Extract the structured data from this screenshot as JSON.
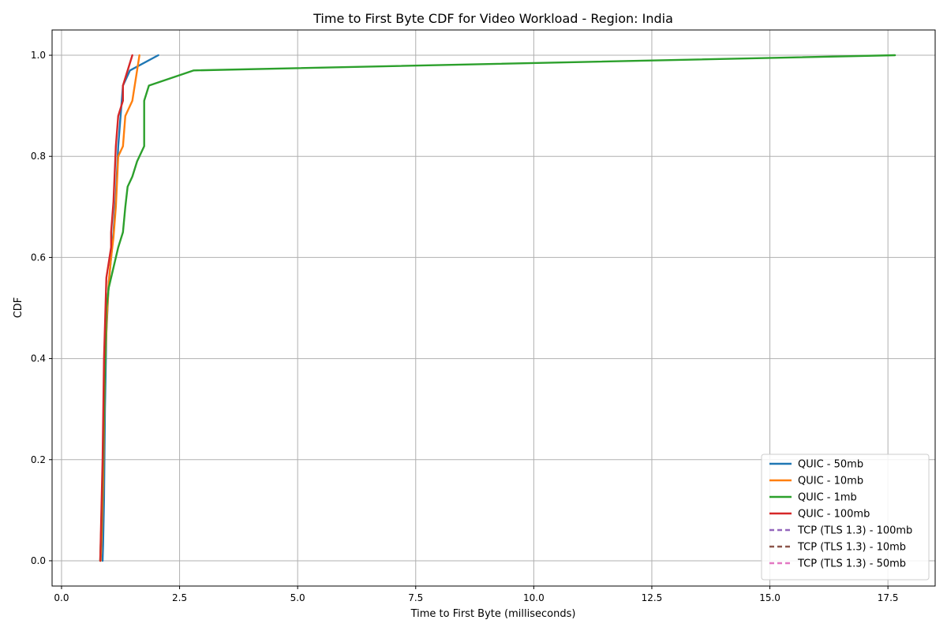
{
  "chart_data": {
    "type": "line",
    "title": "Time to First Byte CDF for Video Workload - Region: India",
    "xlabel": "Time to First Byte (milliseconds)",
    "ylabel": "CDF",
    "xlim": [
      -0.2,
      18.5
    ],
    "ylim": [
      -0.05,
      1.05
    ],
    "x_ticks": [
      0.0,
      2.5,
      5.0,
      7.5,
      10.0,
      12.5,
      15.0,
      17.5
    ],
    "x_tick_labels": [
      "0.0",
      "2.5",
      "5.0",
      "7.5",
      "10.0",
      "12.5",
      "15.0",
      "17.5"
    ],
    "y_ticks": [
      0.0,
      0.2,
      0.4,
      0.6,
      0.8,
      1.0
    ],
    "y_tick_labels": [
      "0.0",
      "0.2",
      "0.4",
      "0.6",
      "0.8",
      "1.0"
    ],
    "grid": true,
    "legend_position": "lower-right",
    "series": [
      {
        "name": "QUIC - 50mb",
        "color": "#1f77b4",
        "dash": "solid",
        "points": [
          [
            0.87,
            0.0
          ],
          [
            0.88,
            0.03
          ],
          [
            0.9,
            0.12
          ],
          [
            0.92,
            0.3
          ],
          [
            0.95,
            0.45
          ],
          [
            1.0,
            0.55
          ],
          [
            1.05,
            0.6
          ],
          [
            1.1,
            0.65
          ],
          [
            1.15,
            0.72
          ],
          [
            1.2,
            0.82
          ],
          [
            1.25,
            0.88
          ],
          [
            1.3,
            0.94
          ],
          [
            1.45,
            0.97
          ],
          [
            2.05,
            1.0
          ]
        ]
      },
      {
        "name": "QUIC - 10mb",
        "color": "#ff7f0e",
        "dash": "solid",
        "points": [
          [
            0.83,
            0.0
          ],
          [
            0.85,
            0.05
          ],
          [
            0.88,
            0.15
          ],
          [
            0.92,
            0.38
          ],
          [
            0.96,
            0.48
          ],
          [
            1.0,
            0.55
          ],
          [
            1.05,
            0.6
          ],
          [
            1.1,
            0.64
          ],
          [
            1.15,
            0.7
          ],
          [
            1.2,
            0.8
          ],
          [
            1.3,
            0.82
          ],
          [
            1.35,
            0.88
          ],
          [
            1.5,
            0.91
          ],
          [
            1.6,
            0.97
          ],
          [
            1.65,
            1.0
          ]
        ]
      },
      {
        "name": "QUIC - 1mb",
        "color": "#2ca02c",
        "dash": "solid",
        "points": [
          [
            0.82,
            0.0
          ],
          [
            0.84,
            0.06
          ],
          [
            0.88,
            0.2
          ],
          [
            0.92,
            0.38
          ],
          [
            0.95,
            0.5
          ],
          [
            1.0,
            0.54
          ],
          [
            1.1,
            0.58
          ],
          [
            1.2,
            0.62
          ],
          [
            1.3,
            0.65
          ],
          [
            1.35,
            0.7
          ],
          [
            1.4,
            0.74
          ],
          [
            1.5,
            0.76
          ],
          [
            1.6,
            0.79
          ],
          [
            1.75,
            0.82
          ],
          [
            1.75,
            0.91
          ],
          [
            1.85,
            0.94
          ],
          [
            2.8,
            0.97
          ],
          [
            17.65,
            1.0
          ]
        ]
      },
      {
        "name": "QUIC - 100mb",
        "color": "#d62728",
        "dash": "solid",
        "points": [
          [
            0.82,
            0.0
          ],
          [
            0.83,
            0.04
          ],
          [
            0.87,
            0.2
          ],
          [
            0.9,
            0.4
          ],
          [
            0.95,
            0.56
          ],
          [
            1.0,
            0.59
          ],
          [
            1.05,
            0.62
          ],
          [
            1.05,
            0.65
          ],
          [
            1.1,
            0.71
          ],
          [
            1.15,
            0.82
          ],
          [
            1.2,
            0.88
          ],
          [
            1.3,
            0.91
          ],
          [
            1.3,
            0.94
          ],
          [
            1.5,
            1.0
          ]
        ]
      },
      {
        "name": "TCP (TLS 1.3) - 100mb",
        "color": "#9467bd",
        "dash": "dashed",
        "points": []
      },
      {
        "name": "TCP (TLS 1.3) - 10mb",
        "color": "#8c564b",
        "dash": "dashed",
        "points": []
      },
      {
        "name": "TCP (TLS 1.3) - 50mb",
        "color": "#e377c2",
        "dash": "dashed",
        "points": []
      }
    ]
  }
}
